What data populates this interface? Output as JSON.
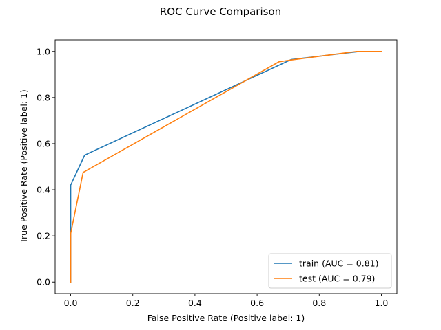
{
  "chart_data": {
    "type": "line",
    "title": "ROC Curve Comparison",
    "xlabel": "False Positive Rate (Positive label: 1)",
    "ylabel": "True Positive Rate (Positive label: 1)",
    "xlim": [
      -0.05,
      1.05
    ],
    "ylim": [
      -0.05,
      1.05
    ],
    "xticks": [
      "0.0",
      "0.2",
      "0.4",
      "0.6",
      "0.8",
      "1.0"
    ],
    "yticks": [
      "0.0",
      "0.2",
      "0.4",
      "0.6",
      "0.8",
      "1.0"
    ],
    "grid": false,
    "legend_position": "lower-right",
    "series": [
      {
        "name": "train (AUC = 0.81)",
        "color": "#1f77b4",
        "x": [
          0.0,
          0.0,
          0.0,
          0.045,
          0.71,
          0.93,
          1.0
        ],
        "y": [
          0.0,
          0.21,
          0.42,
          0.55,
          0.965,
          1.0,
          1.0
        ]
      },
      {
        "name": "test (AUC = 0.79)",
        "color": "#ff7f0e",
        "x": [
          0.0,
          0.0,
          0.0,
          0.04,
          0.67,
          0.71,
          0.92,
          1.0
        ],
        "y": [
          0.0,
          0.19,
          0.21,
          0.475,
          0.955,
          0.963,
          1.0,
          1.0
        ]
      }
    ]
  }
}
